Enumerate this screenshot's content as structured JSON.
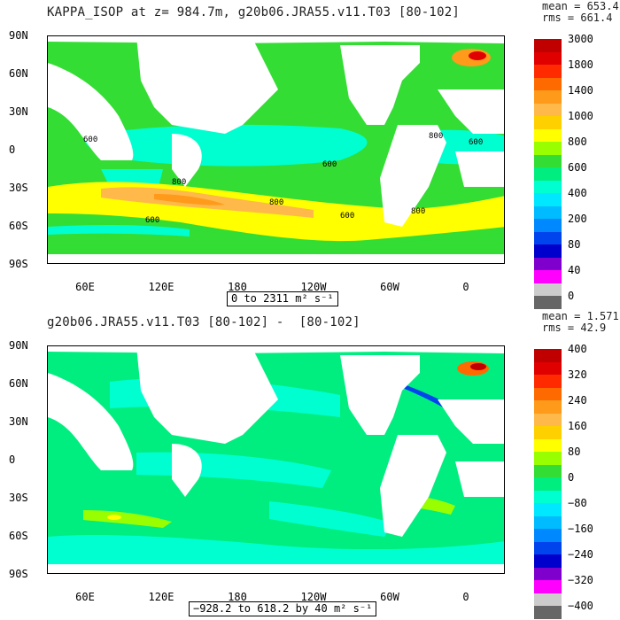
{
  "top": {
    "title": "KAPPA_ISOP at z= 984.7m, g20b06.JRA55.v11.T03 [80-102]",
    "mean": "mean = 653.4",
    "rms": "rms = 661.4",
    "range": "0 to 2311 m² s⁻¹",
    "colorbar": {
      "colors": [
        "#c00000",
        "#e00000",
        "#ff2a00",
        "#ff6a00",
        "#ff9a1a",
        "#ffb84a",
        "#ffd000",
        "#ffff00",
        "#99ff00",
        "#33dd33",
        "#00ee80",
        "#00ffd0",
        "#00e8ff",
        "#00bbff",
        "#0088ff",
        "#0044ee",
        "#0000cc",
        "#7f00cc",
        "#ff00ff",
        "#cccccc",
        "#666666"
      ],
      "labels": [
        "3000",
        "1800",
        "1400",
        "1000",
        "800",
        "600",
        "400",
        "200",
        "80",
        "40",
        "0"
      ],
      "ocean_color": "#33dd33",
      "contour_labels": [
        "800",
        "600",
        "600",
        "800",
        "800",
        "600",
        "800",
        "600",
        "600"
      ]
    }
  },
  "bottom": {
    "title": "g20b06.JRA55.v11.T03 [80-102] -  [80-102]",
    "mean": "mean = 1.571",
    "rms": "rms = 42.9",
    "range": "−928.2 to 618.2 by 40 m² s⁻¹",
    "colorbar": {
      "colors": [
        "#c00000",
        "#e00000",
        "#ff2a00",
        "#ff6a00",
        "#ff9a1a",
        "#ffb84a",
        "#ffd000",
        "#ffff00",
        "#99ff00",
        "#33dd33",
        "#00ee80",
        "#00ffd0",
        "#00e8ff",
        "#00bbff",
        "#0088ff",
        "#0044ee",
        "#0000cc",
        "#7f00cc",
        "#ff00ff",
        "#cccccc",
        "#666666"
      ],
      "labels": [
        "400",
        "320",
        "240",
        "160",
        "80",
        "0",
        "−80",
        "−160",
        "−240",
        "−320",
        "−400"
      ],
      "ocean_color": "#00ee80"
    }
  },
  "axes": {
    "y_labels": [
      "90N",
      "60N",
      "30N",
      "0",
      "30S",
      "60S",
      "90S"
    ],
    "x_labels": [
      "60E",
      "120E",
      "180",
      "120W",
      "60W",
      "0"
    ]
  }
}
